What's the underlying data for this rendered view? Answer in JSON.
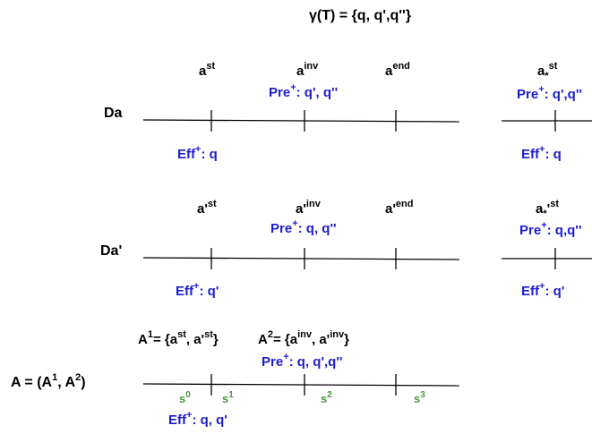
{
  "gamma": {
    "main": "γ(T) = {q, q',q''}"
  },
  "rows": {
    "da": {
      "label": "Da",
      "ast_base": "a",
      "ast_sup": "st",
      "ainv_base": "a",
      "ainv_sup": "inv",
      "aend_base": "a",
      "aend_sup": "end",
      "astar_base": "a",
      "astar_sub": "*",
      "astar_sup": "st",
      "pre_label": "Pre",
      "pre_sup": "+",
      "pre_vals": ": q', q''",
      "pre2_label": "Pre",
      "pre2_sup": "+",
      "pre2_vals": ": q',q''",
      "eff_label": "Eff",
      "eff_sup": "+",
      "eff_vals": ": q",
      "eff2_label": "Eff",
      "eff2_sup": "+",
      "eff2_vals": ": q"
    },
    "dap": {
      "label": "Da'",
      "ast_base": "a'",
      "ast_sup": "st",
      "ainv_base": "a'",
      "ainv_sup": "inv",
      "aend_base": "a'",
      "aend_sup": "end",
      "astar_base": "a",
      "astar_sub": "*",
      "astar_prime": "'",
      "astar_sup": "st",
      "pre_label": "Pre",
      "pre_sup": "+",
      "pre_vals": ": q, q''",
      "pre2_label": "Pre",
      "pre2_sup": "+",
      "pre2_vals": ": q,q''",
      "eff_label": "Eff",
      "eff_sup": "+",
      "eff_vals": ": q'",
      "eff2_label": "Eff",
      "eff2_sup": "+",
      "eff2_vals": ": q'"
    },
    "a": {
      "label_pre": "A = (A",
      "label_sup1": "1",
      "label_mid": ", A",
      "label_sup2": "2",
      "label_post": ")",
      "a1_pre": "A",
      "a1_sup": "1",
      "a1_mid": "= {a",
      "a1_sup2": "st",
      "a1_mid2": ", a'",
      "a1_sup3": "st",
      "a1_post": "}",
      "a2_pre": "A",
      "a2_sup": "2",
      "a2_mid": "= {a",
      "a2_sup2": "inv",
      "a2_mid2": ", a'",
      "a2_sup3": "inv",
      "a2_post": "}",
      "pre_label": "Pre",
      "pre_sup": "+",
      "pre_vals": ": q, q',q''",
      "eff_label": "Eff",
      "eff_sup": "+",
      "eff_vals": ": q, q'",
      "states": [
        {
          "base": "s",
          "sup": "0"
        },
        {
          "base": "s",
          "sup": "1"
        },
        {
          "base": "s",
          "sup": "2"
        },
        {
          "base": "s",
          "sup": "3"
        }
      ]
    }
  },
  "colors": {
    "text": "#000000",
    "precondition": "#1c1cd4",
    "effect": "#1c1cd4",
    "state": "#4a9a3c"
  }
}
